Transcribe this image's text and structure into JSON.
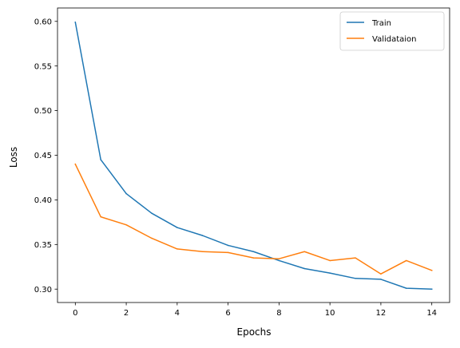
{
  "chart_data": {
    "type": "line",
    "title": "",
    "xlabel": "Epochs",
    "ylabel": "Loss",
    "xlim": [
      -0.7,
      14.7
    ],
    "ylim": [
      0.285,
      0.615
    ],
    "x_ticks": [
      0,
      2,
      4,
      6,
      8,
      10,
      12,
      14
    ],
    "x_tick_labels": [
      "0",
      "2",
      "4",
      "6",
      "8",
      "10",
      "12",
      "14"
    ],
    "y_ticks": [
      0.3,
      0.35,
      0.4,
      0.45,
      0.5,
      0.55,
      0.6
    ],
    "y_tick_labels": [
      "0.30",
      "0.35",
      "0.40",
      "0.45",
      "0.50",
      "0.55",
      "0.60"
    ],
    "grid": false,
    "legend_position": "top-right",
    "x": [
      0,
      1,
      2,
      3,
      4,
      5,
      6,
      7,
      8,
      9,
      10,
      11,
      12,
      13,
      14
    ],
    "series": [
      {
        "name": "Train",
        "color": "#1f77b4",
        "values": [
          0.599,
          0.445,
          0.407,
          0.385,
          0.369,
          0.36,
          0.349,
          0.342,
          0.332,
          0.323,
          0.318,
          0.312,
          0.311,
          0.301,
          0.3
        ]
      },
      {
        "name": "Validataion",
        "color": "#ff7f0e",
        "values": [
          0.44,
          0.381,
          0.372,
          0.357,
          0.345,
          0.342,
          0.341,
          0.335,
          0.334,
          0.342,
          0.332,
          0.335,
          0.317,
          0.332,
          0.321
        ]
      }
    ]
  }
}
